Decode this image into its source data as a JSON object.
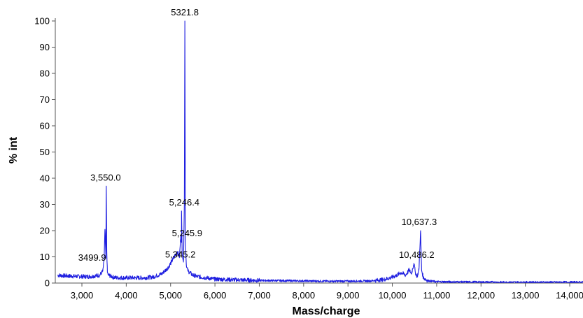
{
  "chart_data": {
    "type": "line",
    "xlabel": "Mass/charge",
    "ylabel": "% int",
    "xlim": [
      2400,
      14300
    ],
    "ylim": [
      0,
      100
    ],
    "x_ticks": [
      3000,
      4000,
      5000,
      6000,
      7000,
      8000,
      9000,
      10000,
      11000,
      12000,
      13000,
      14000
    ],
    "x_tick_labels": [
      "3,000",
      "4,000",
      "5,000",
      "6,000",
      "7,000",
      "8,000",
      "9,000",
      "10,000",
      "11,000",
      "12,000",
      "13,000",
      "14,000"
    ],
    "y_ticks": [
      0,
      10,
      20,
      30,
      40,
      50,
      60,
      70,
      80,
      90,
      100
    ],
    "y_tick_labels": [
      "0",
      "10",
      "20",
      "30",
      "40",
      "50",
      "60",
      "70",
      "80",
      "90",
      "100"
    ],
    "grid": false,
    "series_color": "#1f1fe0",
    "spectrum": {
      "x": [
        2450,
        2600,
        2800,
        3000,
        3200,
        3400,
        3470,
        3499.9,
        3520,
        3540,
        3550,
        3560,
        3575,
        3600,
        3700,
        3800,
        4000,
        4200,
        4400,
        4600,
        4800,
        4950,
        5050,
        5150,
        5200,
        5230,
        5245.9,
        5246.4,
        5260,
        5290,
        5310,
        5321.8,
        5335,
        5345.2,
        5360,
        5400,
        5500,
        5600,
        5800,
        6000,
        6500,
        7000,
        7500,
        8000,
        8500,
        9000,
        9500,
        9800,
        10000,
        10100,
        10200,
        10300,
        10380,
        10430,
        10486.2,
        10520,
        10560,
        10600,
        10637.3,
        10660,
        10700,
        10800,
        11000,
        11500,
        12000,
        12500,
        13000,
        13500,
        14000,
        14300
      ],
      "y": [
        3.0,
        2.8,
        2.6,
        2.5,
        2.5,
        3.0,
        4.5,
        8.5,
        20.5,
        9.5,
        37.0,
        12.5,
        4.0,
        3.0,
        2.3,
        2.0,
        2.0,
        2.0,
        2.0,
        2.3,
        3.5,
        6.0,
        9.0,
        12.0,
        10.0,
        18.0,
        15.5,
        27.5,
        12.0,
        8.0,
        30.0,
        100.0,
        14.0,
        10.5,
        6.0,
        4.5,
        3.0,
        2.5,
        2.0,
        1.5,
        1.2,
        1.0,
        0.9,
        0.8,
        0.7,
        0.7,
        0.8,
        1.3,
        2.2,
        3.0,
        4.0,
        3.0,
        5.0,
        3.5,
        7.5,
        4.0,
        2.5,
        5.0,
        20.0,
        5.0,
        2.0,
        0.9,
        0.5,
        0.4,
        0.35,
        0.3,
        0.3,
        0.3,
        0.3,
        0.3
      ]
    },
    "peak_labels": [
      {
        "text": "5321.8",
        "x": 5321.8,
        "y": 100
      },
      {
        "text": "3,550.0",
        "x": 3550.0,
        "y": 37
      },
      {
        "text": "5,246.4",
        "x": 5246.4,
        "y": 27.5
      },
      {
        "text": "5,245.9",
        "x": 5245.9,
        "y": 15.5
      },
      {
        "text": "5,345.2",
        "x": 5345.2,
        "y": 10.5
      },
      {
        "text": "3499.9",
        "x": 3499.9,
        "y": 8.5
      },
      {
        "text": "10,637.3",
        "x": 10637.3,
        "y": 20
      },
      {
        "text": "10,486.2",
        "x": 10486.2,
        "y": 7.5
      }
    ]
  }
}
